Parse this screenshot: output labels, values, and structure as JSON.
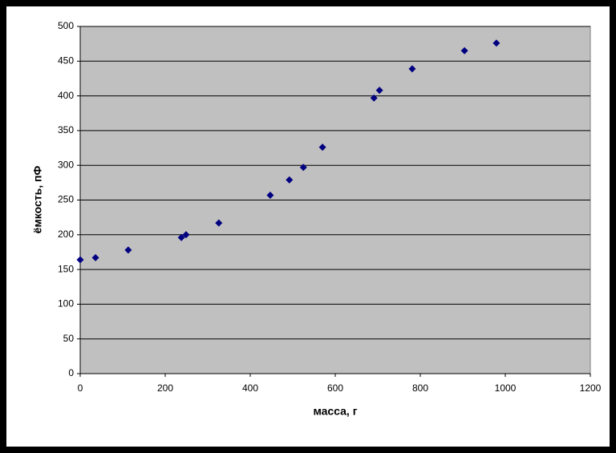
{
  "chart_data": {
    "type": "scatter",
    "x_label": "масса, г",
    "y_label": "ёмкость, пФ",
    "x": [
      0,
      36,
      113,
      238,
      249,
      326,
      447,
      492,
      525,
      570,
      691,
      704,
      781,
      904,
      979
    ],
    "values": [
      164,
      167,
      178,
      196,
      200,
      217,
      257,
      279,
      297,
      326,
      397,
      408,
      439,
      465,
      476
    ],
    "color": "#000080",
    "xlim": [
      0,
      1200
    ],
    "xticks": [
      0,
      200,
      400,
      600,
      800,
      1000,
      1200
    ],
    "ylim": [
      0,
      500
    ],
    "yticks": [
      0,
      50,
      100,
      150,
      200,
      250,
      300,
      350,
      400,
      450,
      500
    ],
    "grid": true
  }
}
